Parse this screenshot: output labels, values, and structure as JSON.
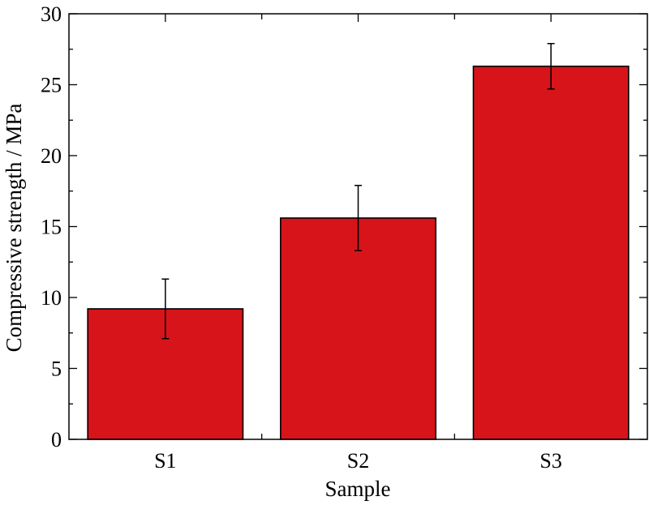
{
  "chart_data": {
    "type": "bar",
    "categories": [
      "S1",
      "S2",
      "S3"
    ],
    "values": [
      9.2,
      15.6,
      26.3
    ],
    "errors": [
      2.1,
      2.3,
      1.6
    ],
    "xlabel": "Sample",
    "ylabel": "Compressive strength / MPa",
    "ylim": [
      0,
      30
    ],
    "yticks": [
      "0",
      "5",
      "10",
      "15",
      "20",
      "25",
      "30"
    ],
    "bar_color": "#d7141a",
    "grid": false
  }
}
